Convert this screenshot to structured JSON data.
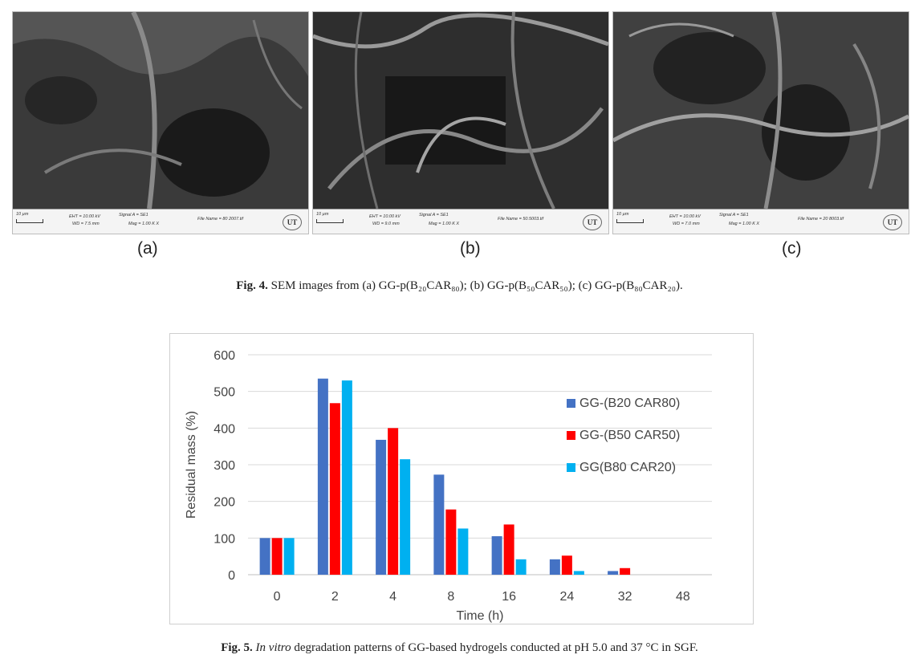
{
  "figure4": {
    "panels": [
      {
        "label": "(a)",
        "scale": "10 µm",
        "eht": "EHT = 10.00 kV",
        "wd": "WD = 7.5 mm",
        "signal": "Signal A = SE1",
        "mag": "Mag = 1.00 K X",
        "file": "File Name = 80 2007.tif"
      },
      {
        "label": "(b)",
        "scale": "10 µm",
        "eht": "EHT = 10.00 kV",
        "wd": "WD = 9.0 mm",
        "signal": "Signal A = SE1",
        "mag": "Mag = 1.00 K X",
        "file": "File Name = 50.5003.tif"
      },
      {
        "label": "(c)",
        "scale": "10 µm",
        "eht": "EHT = 10.00 kV",
        "wd": "WD = 7.0 mm",
        "signal": "Signal A = SE1",
        "mag": "Mag = 1.00 K X",
        "file": "File Name = 20 8003.tif"
      }
    ],
    "logo_text": "UT",
    "caption_label": "Fig. 4.",
    "caption_text": " SEM images from (a) GG-p(B₂₀CAR₈₀); (b) GG-p(B₅₀CAR₅₀); (c) GG-p(B₈₀CAR₂₀)."
  },
  "chart_data": {
    "type": "bar",
    "categories": [
      "0",
      "2",
      "4",
      "8",
      "16",
      "24",
      "32",
      "48"
    ],
    "series": [
      {
        "name": "GG-(B20 CAR80)",
        "color": "#4472c4",
        "values": [
          100,
          535,
          368,
          273,
          105,
          42,
          10,
          0
        ]
      },
      {
        "name": "GG-(B50 CAR50)",
        "color": "#ff0000",
        "values": [
          100,
          468,
          400,
          178,
          137,
          52,
          18,
          0
        ]
      },
      {
        "name": "GG(B80 CAR20)",
        "color": "#00b0f0",
        "values": [
          100,
          530,
          315,
          126,
          42,
          10,
          0,
          0
        ]
      }
    ],
    "xlabel": "Time (h)",
    "ylabel": "Residual mass  (%)",
    "ylim": [
      0,
      600
    ],
    "yticks": [
      0,
      100,
      200,
      300,
      400,
      500,
      600
    ],
    "grid": true,
    "legend": "right"
  },
  "figure5": {
    "caption_label": "Fig. 5.",
    "caption_italic": "In vitro",
    "caption_text": " degradation patterns of GG-based hydrogels conducted at pH 5.0 and 37 °C in SGF."
  }
}
